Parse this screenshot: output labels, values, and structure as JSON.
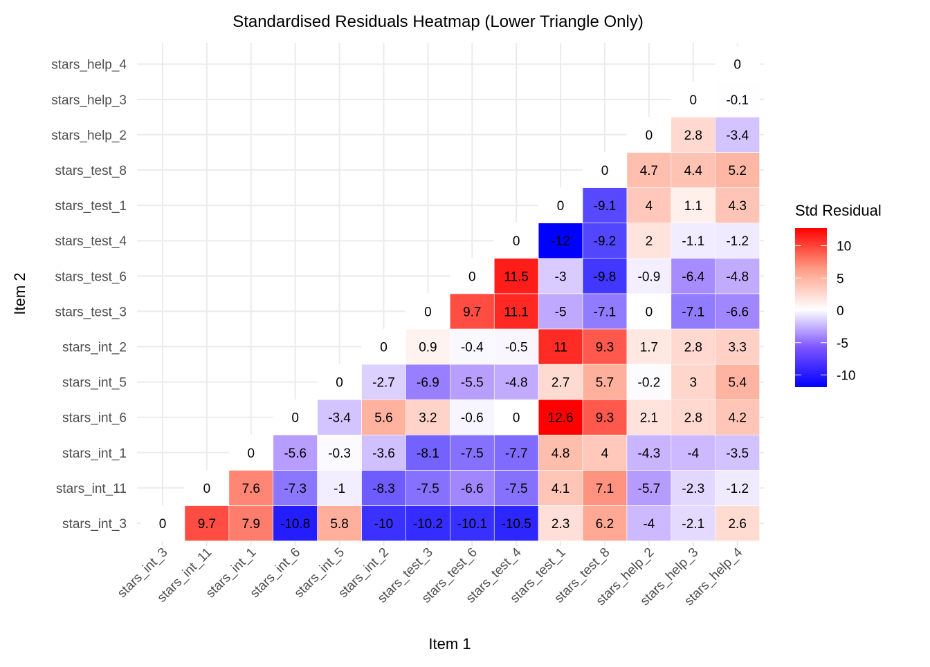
{
  "chart_data": {
    "type": "heatmap",
    "title": "Standardised Residuals Heatmap (Lower Triangle Only)",
    "xlabel": "Item 1",
    "ylabel": "Item 2",
    "items": [
      "stars_int_3",
      "stars_int_11",
      "stars_int_1",
      "stars_int_6",
      "stars_int_5",
      "stars_int_2",
      "stars_test_3",
      "stars_test_6",
      "stars_test_4",
      "stars_test_1",
      "stars_test_8",
      "stars_help_2",
      "stars_help_3",
      "stars_help_4"
    ],
    "rows": [
      [
        0,
        9.7,
        7.9,
        -10.8,
        5.8,
        -10,
        -10.2,
        -10.1,
        -10.5,
        2.3,
        6.2,
        -4,
        -2.1,
        2.6
      ],
      [
        0,
        7.6,
        -7.3,
        -1,
        -8.3,
        -7.5,
        -6.6,
        -7.5,
        4.1,
        7.1,
        -5.7,
        -2.3,
        -1.2
      ],
      [
        0,
        -5.6,
        -0.3,
        -3.6,
        -8.1,
        -7.5,
        -7.7,
        4.8,
        4,
        -4.3,
        -4,
        -3.5
      ],
      [
        0,
        -3.4,
        5.6,
        3.2,
        -0.6,
        0,
        12.6,
        9.3,
        2.1,
        2.8,
        4.2
      ],
      [
        0,
        -2.7,
        -6.9,
        -5.5,
        -4.8,
        2.7,
        5.7,
        -0.2,
        3,
        5.4
      ],
      [
        0,
        0.9,
        -0.4,
        -0.5,
        11,
        9.3,
        1.7,
        2.8,
        3.3
      ],
      [
        0,
        9.7,
        11.1,
        -5,
        -7.1,
        0,
        -7.1,
        -6.6
      ],
      [
        0,
        11.5,
        -3,
        -9.8,
        -0.9,
        -6.4,
        -4.8
      ],
      [
        0,
        -12,
        -9.2,
        2,
        -1.1,
        -1.2
      ],
      [
        0,
        -9.1,
        4,
        1.1,
        4.3
      ],
      [
        0,
        4.7,
        4.4,
        5.2
      ],
      [
        0,
        2.8,
        -3.4
      ],
      [
        0,
        -0.1
      ],
      [
        0
      ]
    ],
    "rows_note": "rows[r] gives values for Item 2 = items[r], Item 1 = items[r..13]",
    "legend": {
      "title": "Std Residual",
      "ticks": [
        10,
        5,
        0,
        -5,
        -10
      ],
      "range": [
        -12,
        12.6
      ],
      "low_color": "#0000FF",
      "mid_color": "#FFFFFF",
      "high_color": "#FF0000",
      "placement": "right"
    },
    "grid": true
  }
}
